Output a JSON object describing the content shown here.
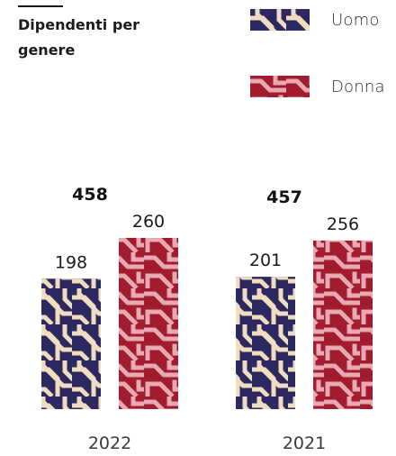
{
  "chart_data": {
    "type": "bar",
    "title": "Dipendenti per genere",
    "categories": [
      "2022",
      "2021"
    ],
    "totals": [
      458,
      457
    ],
    "series": [
      {
        "name": "Uomo",
        "values": [
          198,
          201
        ]
      },
      {
        "name": "Donna",
        "values": [
          260,
          256
        ]
      }
    ],
    "colors": {
      "Uomo": {
        "base": "#2b2960",
        "pattern": "#f0dcc0"
      },
      "Donna": {
        "base": "#a01c2e",
        "pattern": "#e8a9b4"
      }
    },
    "ylim": [
      0,
      260
    ],
    "grid": false,
    "legend_position": "top-right"
  }
}
